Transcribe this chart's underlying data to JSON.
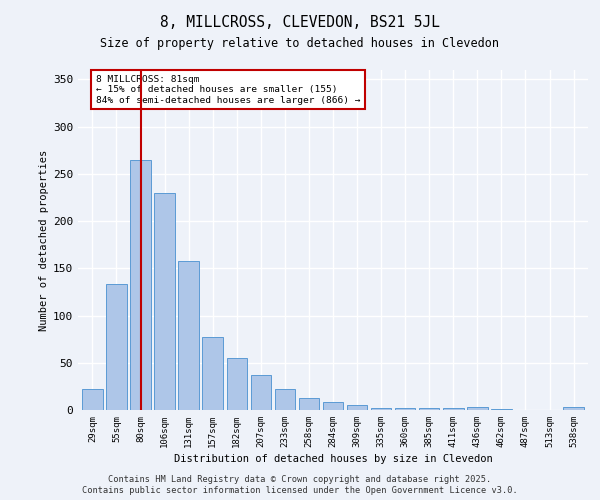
{
  "title1": "8, MILLCROSS, CLEVEDON, BS21 5JL",
  "title2": "Size of property relative to detached houses in Clevedon",
  "xlabel": "Distribution of detached houses by size in Clevedon",
  "ylabel": "Number of detached properties",
  "categories": [
    "29sqm",
    "55sqm",
    "80sqm",
    "106sqm",
    "131sqm",
    "157sqm",
    "182sqm",
    "207sqm",
    "233sqm",
    "258sqm",
    "284sqm",
    "309sqm",
    "335sqm",
    "360sqm",
    "385sqm",
    "411sqm",
    "436sqm",
    "462sqm",
    "487sqm",
    "513sqm",
    "538sqm"
  ],
  "values": [
    22,
    133,
    265,
    230,
    158,
    77,
    55,
    37,
    22,
    13,
    8,
    5,
    2,
    2,
    2,
    2,
    3,
    1,
    0,
    0,
    3
  ],
  "bar_color": "#aec6e8",
  "bar_edge_color": "#5b9bd5",
  "vline_index": 2,
  "vline_color": "#c00000",
  "annotation_text": "8 MILLCROSS: 81sqm\n← 15% of detached houses are smaller (155)\n84% of semi-detached houses are larger (866) →",
  "annotation_box_color": "#ffffff",
  "annotation_box_edge": "#c00000",
  "ylim": [
    0,
    360
  ],
  "yticks": [
    0,
    50,
    100,
    150,
    200,
    250,
    300,
    350
  ],
  "footer1": "Contains HM Land Registry data © Crown copyright and database right 2025.",
  "footer2": "Contains public sector information licensed under the Open Government Licence v3.0.",
  "bg_color": "#eef2f9",
  "grid_color": "#ffffff",
  "font_family": "DejaVu Sans Mono"
}
